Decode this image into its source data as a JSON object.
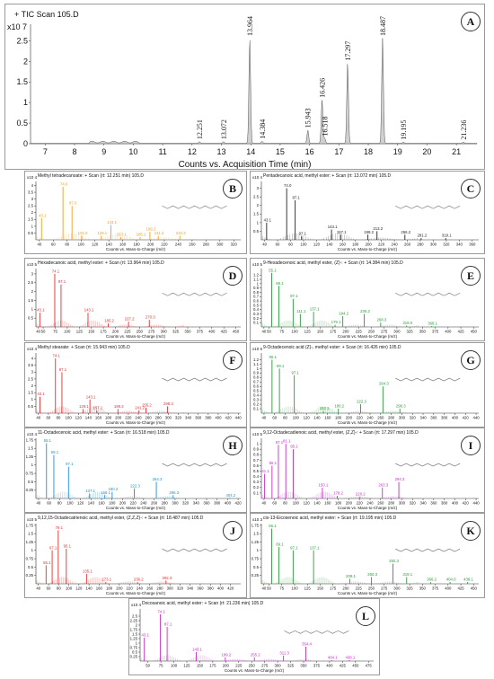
{
  "chart_data": [
    {
      "panel": "A",
      "type": "line",
      "title": "+ TIC Scan 105.D",
      "scale_label": "x10 7",
      "xlabel": "Counts vs. Acquisition Time (min)",
      "xlim": [
        6.5,
        21.7
      ],
      "ylim": [
        0,
        2.9
      ],
      "x_ticks": [
        7,
        8,
        9,
        10,
        11,
        12,
        13,
        14,
        15,
        16,
        17,
        18,
        19,
        20,
        21
      ],
      "y_ticks": [
        0,
        0.5,
        1,
        1.5,
        2,
        2.5
      ],
      "peaks": [
        {
          "x": 12.251,
          "y": 0.04,
          "label": "12.251"
        },
        {
          "x": 13.072,
          "y": 0.04,
          "label": "13.072"
        },
        {
          "x": 13.964,
          "y": 2.55,
          "label": "13.964"
        },
        {
          "x": 14.384,
          "y": 0.05,
          "label": "14.384"
        },
        {
          "x": 15.943,
          "y": 0.32,
          "label": "15.943"
        },
        {
          "x": 16.426,
          "y": 1.05,
          "label": "16.426"
        },
        {
          "x": 16.518,
          "y": 0.12,
          "label": "16.518"
        },
        {
          "x": 17.297,
          "y": 1.95,
          "label": "17.297"
        },
        {
          "x": 18.487,
          "y": 2.55,
          "label": "18.487"
        },
        {
          "x": 19.195,
          "y": 0.03,
          "label": "19.195"
        },
        {
          "x": 21.236,
          "y": 0.03,
          "label": "21.236"
        }
      ]
    },
    {
      "panel": "B",
      "type": "bar",
      "color": "#f0a020",
      "title": "Methyl tetradecanoate: + Scan (rt: 12.251 min) 105.D",
      "scale_label": "x10 4",
      "xlabel": "Counts vs. Mass-to-Charge (m/z)",
      "xlim": [
        35,
        330
      ],
      "ylim": [
        0,
        4.3
      ],
      "x_ticks": [
        40,
        60,
        80,
        100,
        120,
        140,
        160,
        180,
        200,
        220,
        240,
        260,
        280,
        300,
        320
      ],
      "y_ticks": [
        0.5,
        1,
        1.5,
        2,
        2.5,
        3,
        3.5,
        4
      ],
      "peaks": [
        {
          "x": 43.1,
          "y": 1.6,
          "label": "43.1"
        },
        {
          "x": 74.0,
          "y": 3.9,
          "label": "74.0"
        },
        {
          "x": 87.0,
          "y": 2.5,
          "label": "87.0"
        },
        {
          "x": 101.0,
          "y": 0.3,
          "label": "101.0"
        },
        {
          "x": 129.1,
          "y": 0.3,
          "label": "129.1"
        },
        {
          "x": 143.1,
          "y": 1.1,
          "label": "143.1"
        },
        {
          "x": 157.1,
          "y": 0.2,
          "label": "157.1"
        },
        {
          "x": 185.1,
          "y": 0.2,
          "label": "185.1"
        },
        {
          "x": 199.2,
          "y": 0.6,
          "label": "199.2"
        },
        {
          "x": 211.2,
          "y": 0.3,
          "label": "211.2"
        },
        {
          "x": 242.3,
          "y": 0.3,
          "label": "242.3"
        }
      ]
    },
    {
      "panel": "C",
      "type": "bar",
      "color": "#222222",
      "title": "Pentadecanoic acid, methyl ester: + Scan (rt: 13.072 min) 105.D",
      "scale_label": "x10 4",
      "xlabel": "Counts vs. Mass-to-Charge (m/z)",
      "xlim": [
        35,
        370
      ],
      "ylim": [
        0,
        3.4
      ],
      "x_ticks": [
        40,
        60,
        80,
        100,
        120,
        140,
        160,
        180,
        200,
        220,
        240,
        260,
        280,
        300,
        320,
        340,
        360
      ],
      "y_ticks": [
        0.5,
        1,
        1.5,
        2,
        2.5,
        3
      ],
      "peaks": [
        {
          "x": 43.1,
          "y": 1.0,
          "label": "43.1"
        },
        {
          "x": 74.0,
          "y": 3.0,
          "label": "74.0"
        },
        {
          "x": 87.1,
          "y": 2.3,
          "label": "87.1"
        },
        {
          "x": 97.1,
          "y": 0.2,
          "label": "97.1"
        },
        {
          "x": 143.1,
          "y": 0.6,
          "label": "143.1"
        },
        {
          "x": 157.1,
          "y": 0.3,
          "label": "157.1"
        },
        {
          "x": 199.2,
          "y": 0.3,
          "label": "199.2"
        },
        {
          "x": 213.2,
          "y": 0.5,
          "label": "213.2"
        },
        {
          "x": 256.2,
          "y": 0.3,
          "label": "256.2"
        },
        {
          "x": 281.2,
          "y": 0.1,
          "label": "281.2"
        },
        {
          "x": 319.1,
          "y": 0.1,
          "label": "319.1"
        }
      ]
    },
    {
      "panel": "D",
      "type": "bar",
      "color": "#e03030",
      "title": "Hexadecanoic acid, methyl ester: + Scan (rt: 13.964 min) 105.D",
      "scale_label": "x10 5",
      "xlabel": "Counts vs. Mass-to-Charge (m/z)",
      "xlim": [
        35,
        460
      ],
      "ylim": [
        0,
        3.3
      ],
      "x_ticks": [
        40,
        50,
        75,
        100,
        125,
        150,
        175,
        200,
        225,
        250,
        275,
        300,
        325,
        350,
        375,
        400,
        425,
        450
      ],
      "y_ticks": [
        0.5,
        1,
        1.5,
        2,
        2.5,
        3
      ],
      "peaks": [
        {
          "x": 43.1,
          "y": 0.8,
          "label": "43.1"
        },
        {
          "x": 74.1,
          "y": 3.0,
          "label": "74.1"
        },
        {
          "x": 87.1,
          "y": 2.4,
          "label": "87.1"
        },
        {
          "x": 143.1,
          "y": 0.8,
          "label": "143.1"
        },
        {
          "x": 185.2,
          "y": 0.2,
          "label": "185.2"
        },
        {
          "x": 227.2,
          "y": 0.3,
          "label": "227.2"
        },
        {
          "x": 270.3,
          "y": 0.4,
          "label": "270.3"
        }
      ]
    },
    {
      "panel": "E",
      "type": "bar",
      "color": "#2a9a3a",
      "title": "9-Hexadecenoic acid, methyl ester, (Z)-: + Scan (rt: 14.384 min) 105.D",
      "scale_label": "x10 5",
      "xlabel": "Counts vs. Mass-to-Charge (m/z)",
      "xlim": [
        35,
        460
      ],
      "ylim": [
        0,
        1.35
      ],
      "x_ticks": [
        40,
        50,
        75,
        100,
        125,
        150,
        175,
        200,
        225,
        250,
        275,
        300,
        325,
        350,
        375,
        400,
        425,
        450
      ],
      "y_ticks": [
        0.1,
        0.2,
        0.3,
        0.4,
        0.5,
        0.6,
        0.7,
        0.8,
        0.9,
        1,
        1.1,
        1.2
      ],
      "peaks": [
        {
          "x": 55.1,
          "y": 1.25,
          "label": "55.1"
        },
        {
          "x": 69.1,
          "y": 0.95,
          "label": "69.1"
        },
        {
          "x": 97.1,
          "y": 0.65,
          "label": "97.1"
        },
        {
          "x": 111.1,
          "y": 0.3,
          "label": "111.1"
        },
        {
          "x": 137.1,
          "y": 0.35,
          "label": "137.1"
        },
        {
          "x": 179.1,
          "y": 0.05,
          "label": "179.1"
        },
        {
          "x": 194.2,
          "y": 0.25,
          "label": "194.2"
        },
        {
          "x": 236.2,
          "y": 0.3,
          "label": "236.2"
        },
        {
          "x": 268.3,
          "y": 0.1,
          "label": "268.3"
        },
        {
          "x": 319.0,
          "y": 0.03,
          "label": "319.0"
        },
        {
          "x": 368.1,
          "y": 0.02,
          "label": "368.1"
        }
      ]
    },
    {
      "panel": "F",
      "type": "bar",
      "color": "#e03030",
      "title": "Methyl stearate: + Scan (rt: 15.943 min) 105.D",
      "scale_label": "x10 4",
      "xlabel": "Counts vs. Mass-to-Charge (m/z)",
      "xlim": [
        35,
        445
      ],
      "ylim": [
        0,
        4.4
      ],
      "x_ticks": [
        40,
        60,
        80,
        100,
        120,
        140,
        160,
        180,
        200,
        220,
        240,
        260,
        280,
        300,
        320,
        340,
        360,
        380,
        400,
        420,
        440
      ],
      "y_ticks": [
        0.5,
        1,
        1.5,
        2,
        2.5,
        3,
        3.5,
        4
      ],
      "peaks": [
        {
          "x": 43.1,
          "y": 1.2,
          "label": "43.1"
        },
        {
          "x": 74.1,
          "y": 4.0,
          "label": "74.1"
        },
        {
          "x": 87.1,
          "y": 3.0,
          "label": "87.1"
        },
        {
          "x": 129.1,
          "y": 0.3,
          "label": "129.1"
        },
        {
          "x": 143.1,
          "y": 1.0,
          "label": "143.1"
        },
        {
          "x": 157.1,
          "y": 0.2,
          "label": "157.1"
        },
        {
          "x": 199.2,
          "y": 0.3,
          "label": "199.2"
        },
        {
          "x": 241.2,
          "y": 0.2,
          "label": "241.2"
        },
        {
          "x": 255.2,
          "y": 0.4,
          "label": "255.2"
        },
        {
          "x": 298.3,
          "y": 0.5,
          "label": "298.3"
        }
      ]
    },
    {
      "panel": "G",
      "type": "bar",
      "color": "#2a9a3a",
      "title": "9-Octadecenoic acid (Z)-, methyl ester: + Scan (rt: 16.426 min) 105.D",
      "scale_label": "x10 5",
      "xlabel": "Counts vs. Mass-to-Charge (m/z)",
      "xlim": [
        35,
        445
      ],
      "ylim": [
        0,
        1.35
      ],
      "x_ticks": [
        40,
        60,
        80,
        100,
        120,
        140,
        160,
        180,
        200,
        220,
        240,
        260,
        280,
        300,
        320,
        340,
        360,
        380,
        400,
        420,
        440
      ],
      "y_ticks": [
        0.1,
        0.2,
        0.3,
        0.4,
        0.5,
        0.6,
        0.7,
        0.8,
        0.9,
        1,
        1.1,
        1.2
      ],
      "peaks": [
        {
          "x": 55.1,
          "y": 1.2,
          "label": "55.1"
        },
        {
          "x": 69.1,
          "y": 1.0,
          "label": "69.1"
        },
        {
          "x": 97.1,
          "y": 0.85,
          "label": "97.1"
        },
        {
          "x": 152.1,
          "y": 0.05,
          "label": "152.1"
        },
        {
          "x": 180.2,
          "y": 0.1,
          "label": "180.2"
        },
        {
          "x": 222.3,
          "y": 0.2,
          "label": "222.3"
        },
        {
          "x": 264.3,
          "y": 0.6,
          "label": "264.3"
        },
        {
          "x": 296.3,
          "y": 0.1,
          "label": "296.3"
        }
      ]
    },
    {
      "panel": "H",
      "type": "bar",
      "color": "#1e90d0",
      "title": "11-Octadecenoic acid, methyl ester: + Scan (rt: 16.518 min) 105.D",
      "scale_label": "x10 4",
      "xlabel": "Counts vs. Mass-to-Charge (m/z)",
      "xlim": [
        35,
        425
      ],
      "ylim": [
        0,
        1.8
      ],
      "x_ticks": [
        40,
        60,
        80,
        100,
        120,
        140,
        160,
        180,
        200,
        220,
        240,
        260,
        280,
        300,
        320,
        340,
        360,
        380,
        400,
        420
      ],
      "y_ticks": [
        0.25,
        0.5,
        0.75,
        1,
        1.25,
        1.5,
        1.75
      ],
      "peaks": [
        {
          "x": 55.1,
          "y": 1.65,
          "label": "55.1"
        },
        {
          "x": 69.1,
          "y": 1.3,
          "label": "69.1"
        },
        {
          "x": 97.1,
          "y": 0.95,
          "label": "97.1"
        },
        {
          "x": 137.1,
          "y": 0.15,
          "label": "137.1"
        },
        {
          "x": 166.1,
          "y": 0.1,
          "label": "166.1"
        },
        {
          "x": 180.2,
          "y": 0.2,
          "label": "180.2"
        },
        {
          "x": 222.3,
          "y": 0.3,
          "label": "222.3"
        },
        {
          "x": 264.3,
          "y": 0.5,
          "label": "264.3"
        },
        {
          "x": 296.3,
          "y": 0.1,
          "label": "296.3"
        },
        {
          "x": 404.2,
          "y": 0.02,
          "label": "404.2"
        }
      ]
    },
    {
      "panel": "I",
      "type": "bar",
      "color": "#c030c0",
      "title": "9,12-Octadecadienoic acid, methyl ester, (Z,Z)-: + Scan (rt: 17.297 min) 105.D",
      "scale_label": "x10 5",
      "xlabel": "Counts vs. Mass-to-Charge (m/z)",
      "xlim": [
        35,
        445
      ],
      "ylim": [
        0,
        1.1
      ],
      "x_ticks": [
        40,
        60,
        80,
        100,
        120,
        140,
        160,
        180,
        200,
        220,
        240,
        260,
        280,
        300,
        320,
        340,
        360,
        380,
        400,
        420,
        440
      ],
      "y_ticks": [
        0.1,
        0.2,
        0.3,
        0.4,
        0.5,
        0.6,
        0.7,
        0.8,
        0.9,
        1
      ],
      "peaks": [
        {
          "x": 41.1,
          "y": 0.45,
          "label": "41.1"
        },
        {
          "x": 55.1,
          "y": 0.6,
          "label": "55.1"
        },
        {
          "x": 67.1,
          "y": 0.98,
          "label": "67.1"
        },
        {
          "x": 81.1,
          "y": 1.0,
          "label": "81.1"
        },
        {
          "x": 95.1,
          "y": 0.9,
          "label": "95.1"
        },
        {
          "x": 150.1,
          "y": 0.2,
          "label": "150.1"
        },
        {
          "x": 178.2,
          "y": 0.05,
          "label": "178.2"
        },
        {
          "x": 220.2,
          "y": 0.03,
          "label": "220.2"
        },
        {
          "x": 263.3,
          "y": 0.2,
          "label": "263.3"
        },
        {
          "x": 294.3,
          "y": 0.3,
          "label": "294.3"
        }
      ]
    },
    {
      "panel": "J",
      "type": "bar",
      "color": "#e03030",
      "title": "9,12,15-Octadecatrienoic acid, methyl ester, (Z,Z,Z)-: + Scan (rt: 18.487 min) 105.D",
      "scale_label": "x10 5",
      "xlabel": "Counts vs. Mass-to-Charge (m/z)",
      "xlim": [
        35,
        440
      ],
      "ylim": [
        0,
        1.8
      ],
      "x_ticks": [
        40,
        60,
        80,
        100,
        120,
        140,
        160,
        180,
        200,
        220,
        240,
        260,
        280,
        300,
        320,
        340,
        360,
        380,
        400,
        420
      ],
      "y_ticks": [
        0.25,
        0.5,
        0.75,
        1,
        1.25,
        1.5,
        1.75
      ],
      "peaks": [
        {
          "x": 55.1,
          "y": 0.55,
          "label": "55.1"
        },
        {
          "x": 67.1,
          "y": 1.0,
          "label": "67.1"
        },
        {
          "x": 79.1,
          "y": 1.6,
          "label": "79.1"
        },
        {
          "x": 95.1,
          "y": 1.05,
          "label": "95.1"
        },
        {
          "x": 135.1,
          "y": 0.3,
          "label": "135.1"
        },
        {
          "x": 173.1,
          "y": 0.05,
          "label": "173.1"
        },
        {
          "x": 236.2,
          "y": 0.05,
          "label": "236.2"
        },
        {
          "x": 292.3,
          "y": 0.1,
          "label": "292.3"
        }
      ]
    },
    {
      "panel": "K",
      "type": "bar",
      "color": "#2a9a3a",
      "title": "cis-13-Eicosenoic acid, methyl ester: + Scan (rt: 19.195 min) 105.D",
      "scale_label": "x10 3",
      "xlabel": "Counts vs. Mass-to-Charge (m/z)",
      "xlim": [
        35,
        460
      ],
      "ylim": [
        0,
        1.8
      ],
      "x_ticks": [
        40,
        50,
        75,
        100,
        125,
        150,
        175,
        200,
        225,
        250,
        275,
        300,
        325,
        350,
        375,
        400,
        425,
        450
      ],
      "y_ticks": [
        0.25,
        0.5,
        0.75,
        1,
        1.25,
        1.5,
        1.75
      ],
      "peaks": [
        {
          "x": 55.1,
          "y": 1.65,
          "label": "55.1"
        },
        {
          "x": 69.1,
          "y": 1.1,
          "label": "69.1"
        },
        {
          "x": 97.1,
          "y": 1.0,
          "label": "97.1"
        },
        {
          "x": 137.1,
          "y": 1.0,
          "label": "137.1"
        },
        {
          "x": 208.1,
          "y": 0.15,
          "label": "208.1"
        },
        {
          "x": 250.3,
          "y": 0.2,
          "label": "250.3"
        },
        {
          "x": 292.3,
          "y": 0.6,
          "label": "292.3"
        },
        {
          "x": 319.1,
          "y": 0.2,
          "label": "319.1"
        },
        {
          "x": 366.2,
          "y": 0.05,
          "label": "366.2"
        },
        {
          "x": 404.0,
          "y": 0.05,
          "label": "404.0"
        },
        {
          "x": 438.1,
          "y": 0.05,
          "label": "438.1"
        }
      ]
    },
    {
      "panel": "L",
      "type": "bar",
      "color": "#c030c0",
      "title": "Docosanoic acid, methyl ester: + Scan (rt: 21.236 min) 105.D",
      "scale_label": "x10 4",
      "xlabel": "Counts vs. Mass-to-Charge (m/z)",
      "xlim": [
        35,
        485
      ],
      "ylim": [
        0,
        2.9
      ],
      "x_ticks": [
        50,
        75,
        100,
        125,
        150,
        175,
        200,
        225,
        250,
        275,
        300,
        325,
        350,
        375,
        400,
        425,
        450,
        475
      ],
      "y_ticks": [
        0.25,
        0.5,
        0.75,
        1,
        1.25,
        1.5,
        1.75,
        2,
        2.25,
        2.5
      ],
      "peaks": [
        {
          "x": 43.1,
          "y": 1.3,
          "label": "43.1"
        },
        {
          "x": 74.1,
          "y": 2.6,
          "label": "74.1"
        },
        {
          "x": 87.1,
          "y": 1.9,
          "label": "87.1"
        },
        {
          "x": 143.1,
          "y": 0.5,
          "label": "143.1"
        },
        {
          "x": 199.2,
          "y": 0.2,
          "label": "199.2"
        },
        {
          "x": 255.2,
          "y": 0.2,
          "label": "255.2"
        },
        {
          "x": 311.3,
          "y": 0.3,
          "label": "311.3"
        },
        {
          "x": 354.4,
          "y": 0.8,
          "label": "354.4"
        },
        {
          "x": 404.1,
          "y": 0.05,
          "label": "404.1"
        },
        {
          "x": 438.1,
          "y": 0.05,
          "label": "438.1"
        }
      ]
    }
  ]
}
